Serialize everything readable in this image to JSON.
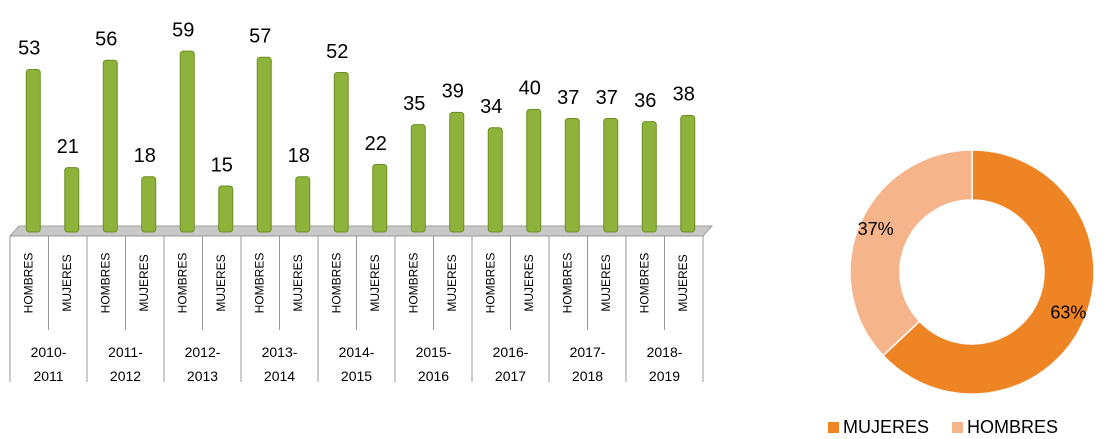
{
  "chart_data": [
    {
      "type": "bar",
      "categories": [
        "HOMBRES",
        "MUJERES",
        "HOMBRES",
        "MUJERES",
        "HOMBRES",
        "MUJERES",
        "HOMBRES",
        "MUJERES",
        "HOMBRES",
        "MUJERES",
        "HOMBRES",
        "MUJERES",
        "HOMBRES",
        "MUJERES",
        "HOMBRES",
        "MUJERES",
        "HOMBRES",
        "MUJERES"
      ],
      "groups": [
        "2010-2011",
        "2011-2012",
        "2012-2013",
        "2013-2014",
        "2014-2015",
        "2015-2016",
        "2016-2017",
        "2017-2018",
        "2018-2019"
      ],
      "values": [
        53,
        21,
        56,
        18,
        59,
        15,
        57,
        18,
        52,
        22,
        35,
        39,
        34,
        40,
        37,
        37,
        36,
        38
      ],
      "color": "#8db33a",
      "ylim": [
        0,
        60
      ]
    },
    {
      "type": "pie",
      "categories": [
        "MUJERES",
        "HOMBRES"
      ],
      "values": [
        63,
        37
      ],
      "value_labels": [
        "63%",
        "37%"
      ],
      "colors": [
        "#ef8424",
        "#f5b48a"
      ],
      "donut": true,
      "legend": "bottom"
    }
  ]
}
